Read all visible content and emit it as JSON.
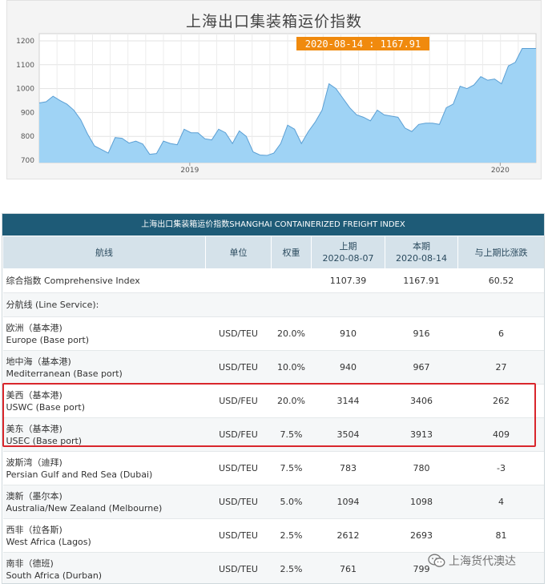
{
  "chart_data": {
    "type": "area",
    "title": "上海出口集装箱运价指数",
    "annotation": "2020-08-14 : 1167.91",
    "annotation_color": "#f08a0e",
    "fill_color": "#9fd3f5",
    "line_color": "#5b9fd4",
    "ylim": [
      690,
      1230
    ],
    "yticks": [
      700,
      800,
      900,
      1000,
      1100,
      1200
    ],
    "xlabels": [
      "2019",
      "2020"
    ],
    "grid": true,
    "x_unit": "week index (2018-11 to 2020-08-14)",
    "x": [
      0,
      2,
      4,
      6,
      8,
      10,
      12,
      14,
      16,
      18,
      20,
      22,
      24,
      26,
      28,
      30,
      32,
      34,
      36,
      38,
      40,
      42,
      44,
      46,
      48,
      50,
      52,
      54,
      56,
      58,
      60,
      62,
      64,
      66,
      68,
      70,
      72,
      74,
      76,
      78,
      80,
      82,
      84,
      86,
      88,
      90,
      92,
      94
    ],
    "values": [
      940,
      945,
      968,
      950,
      935,
      910,
      870,
      810,
      760,
      745,
      730,
      795,
      792,
      772,
      780,
      768,
      725,
      728,
      780,
      770,
      765,
      830,
      815,
      815,
      790,
      785,
      830,
      815,
      770,
      823,
      800,
      735,
      722,
      720,
      730,
      770,
      847,
      830,
      770,
      820,
      860,
      910,
      1020,
      1000,
      960,
      920,
      890,
      880
    ]
  },
  "chart_values_tail": {
    "x": [
      96,
      98,
      100,
      102,
      104,
      106,
      108,
      110,
      112,
      114,
      116,
      118,
      120,
      122,
      124,
      126,
      128,
      130,
      132,
      134,
      136,
      138,
      140,
      142,
      144
    ],
    "values": [
      865,
      910,
      890,
      885,
      880,
      835,
      820,
      850,
      855,
      855,
      850,
      920,
      935,
      1010,
      1000,
      1015,
      1050,
      1035,
      1040,
      1020,
      1095,
      1110,
      1168,
      1168,
      1168
    ]
  },
  "table": {
    "caption": "上海出口集装箱运价指数SHANGHAI CONTAINERIZED FREIGHT INDEX",
    "headers": {
      "route": "航线",
      "unit": "单位",
      "weight": "权重",
      "prev_l1": "上期",
      "prev_l2": "2020-08-07",
      "cur_l1": "本期",
      "cur_l2": "2020-08-14",
      "change": "与上期比涨跌"
    },
    "composite": {
      "name": "综合指数 Comprehensive Index",
      "prev": "1107.39",
      "cur": "1167.91",
      "change": "60.52"
    },
    "line_service_label": "分航线 (Line Service):",
    "rows": [
      {
        "cn": "欧洲（基本港)",
        "en": "Europe (Base port)",
        "unit": "USD/TEU",
        "weight": "20.0%",
        "prev": "910",
        "cur": "916",
        "change": "6"
      },
      {
        "cn": "地中海（基本港)",
        "en": "Mediterranean (Base port)",
        "unit": "USD/TEU",
        "weight": "10.0%",
        "prev": "940",
        "cur": "967",
        "change": "27"
      },
      {
        "cn": "美西（基本港)",
        "en": "USWC (Base port)",
        "unit": "USD/FEU",
        "weight": "20.0%",
        "prev": "3144",
        "cur": "3406",
        "change": "262"
      },
      {
        "cn": "美东（基本港)",
        "en": "USEC (Base port)",
        "unit": "USD/FEU",
        "weight": "7.5%",
        "prev": "3504",
        "cur": "3913",
        "change": "409"
      },
      {
        "cn": "波斯湾（迪拜)",
        "en": "Persian Gulf and Red Sea (Dubai)",
        "unit": "USD/TEU",
        "weight": "7.5%",
        "prev": "783",
        "cur": "780",
        "change": "-3"
      },
      {
        "cn": "澳新（墨尔本)",
        "en": "Australia/New Zealand (Melbourne)",
        "unit": "USD/TEU",
        "weight": "5.0%",
        "prev": "1094",
        "cur": "1098",
        "change": "4"
      },
      {
        "cn": "西非（拉各斯)",
        "en": "West Africa (Lagos)",
        "unit": "USD/TEU",
        "weight": "2.5%",
        "prev": "2612",
        "cur": "2693",
        "change": "81"
      },
      {
        "cn": "南非（德班)",
        "en": "South Africa (Durban)",
        "unit": "USD/TEU",
        "weight": "2.5%",
        "prev": "761",
        "cur": "799",
        "change": ""
      }
    ]
  },
  "watermark": {
    "text": "上海货代澳达",
    "icon": "wechat-icon"
  },
  "colors": {
    "header_bg": "#1e5b77",
    "column_header_bg": "#d5e2ea",
    "highlight": "#d9262c"
  }
}
